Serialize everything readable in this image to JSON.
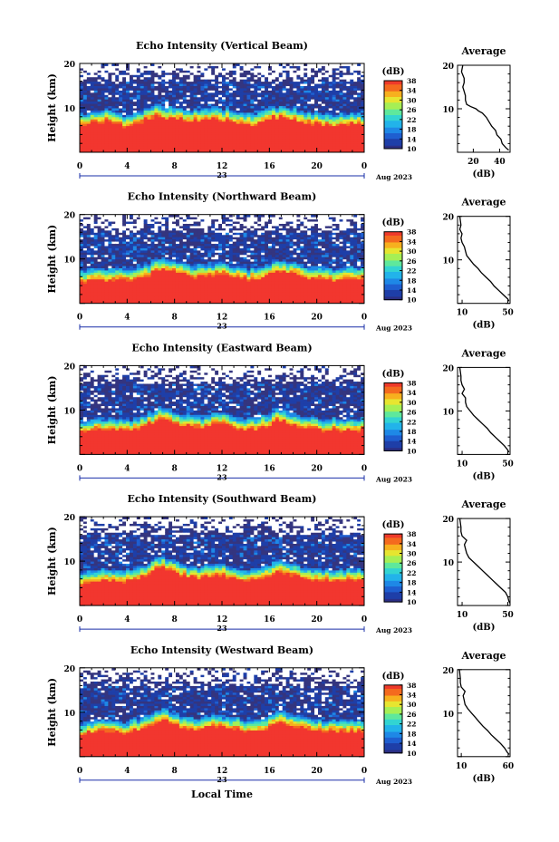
{
  "figure": {
    "xlabel": "Local Time"
  },
  "colors": {
    "colorscale": [
      "#2b2f85",
      "#1e3fa8",
      "#1f5fd0",
      "#1e88e6",
      "#22b3ea",
      "#33d4d2",
      "#5fe89c",
      "#a6ef55",
      "#e7e530",
      "#f7b01e",
      "#f46a1f",
      "#ee3a2a"
    ],
    "background_echo": "#34357f",
    "strong_echo": "#f2362f"
  },
  "chart_data": [
    {
      "type": "heatmap",
      "title": "Echo Intensity (Vertical Beam)",
      "ylabel": "Height (km)",
      "xlim": [
        0,
        24
      ],
      "ylim": [
        0,
        20
      ],
      "xticks": [
        "0",
        "4",
        "8",
        "12",
        "16",
        "20",
        "0"
      ],
      "yticks": [
        "20",
        "10"
      ],
      "date_label": "23",
      "date_side_label": "Aug 2023",
      "colorbar": {
        "unit": "(dB)",
        "range": [
          10,
          38
        ],
        "ticks": [
          "38",
          "34",
          "30",
          "26",
          "22",
          "18",
          "14",
          "10"
        ]
      },
      "boundary_km": [
        6.9,
        7.6,
        8.3,
        7.4,
        7.0,
        7.8,
        8.6,
        9.0,
        8.5,
        8.0,
        8.4,
        8.9,
        8.6,
        7.9,
        7.3,
        7.6,
        8.1,
        8.8,
        8.4,
        7.8,
        7.4,
        7.1,
        7.2,
        7.5,
        7.4
      ],
      "hot_spots": [
        {
          "x": 6.6,
          "h": 9.5
        },
        {
          "x": 16.3,
          "h": 9.4
        }
      ],
      "profile": {
        "title": "Average",
        "xlabel": "(dB)",
        "xticks": [
          "20",
          "40"
        ],
        "xlim": [
          8,
          48
        ],
        "h": [
          20,
          18.5,
          17,
          16,
          15,
          14,
          13,
          12,
          11,
          10.5,
          10,
          9.5,
          9,
          8,
          7,
          6,
          5,
          4,
          3,
          2,
          1,
          0.5
        ],
        "db": [
          12,
          11,
          13,
          13,
          12,
          13,
          14,
          14,
          15,
          18,
          22,
          24,
          27,
          30,
          32,
          34,
          37,
          38,
          41,
          42,
          45,
          47
        ]
      }
    },
    {
      "type": "heatmap",
      "title": "Echo Intensity (Northward Beam)",
      "ylabel": "Height (km)",
      "xlim": [
        0,
        24
      ],
      "ylim": [
        0,
        20
      ],
      "xticks": [
        "0",
        "4",
        "8",
        "12",
        "16",
        "20",
        "0"
      ],
      "yticks": [
        "20",
        "10"
      ],
      "date_label": "23",
      "date_side_label": "Aug 2023",
      "colorbar": {
        "unit": "(dB)",
        "range": [
          10,
          38
        ],
        "ticks": [
          "38",
          "34",
          "30",
          "26",
          "22",
          "18",
          "14",
          "10"
        ]
      },
      "boundary_km": [
        5.5,
        6.2,
        6.6,
        6.4,
        6.2,
        6.8,
        7.7,
        8.5,
        8.0,
        7.2,
        7.0,
        7.4,
        7.8,
        7.1,
        6.4,
        6.6,
        7.2,
        8.3,
        7.7,
        7.0,
        6.6,
        6.3,
        6.5,
        6.6,
        6.4
      ],
      "hot_spots": [
        {
          "x": 6.8,
          "h": 9.2
        },
        {
          "x": 16.5,
          "h": 8.8
        }
      ],
      "profile": {
        "title": "Average",
        "xlabel": "(dB)",
        "xticks": [
          "10",
          "50"
        ],
        "xlim": [
          6,
          52
        ],
        "h": [
          20,
          18,
          17,
          16,
          15,
          14,
          13,
          12,
          11,
          10,
          9,
          8,
          7,
          6,
          5,
          4,
          3,
          2,
          1,
          0.5
        ],
        "db": [
          8,
          9,
          8,
          10,
          9,
          10,
          12,
          13,
          14,
          17,
          20,
          24,
          27,
          31,
          35,
          38,
          42,
          46,
          50,
          51
        ]
      }
    },
    {
      "type": "heatmap",
      "title": "Echo Intensity (Eastward Beam)",
      "ylabel": "Height (km)",
      "xlim": [
        0,
        24
      ],
      "ylim": [
        0,
        20
      ],
      "xticks": [
        "0",
        "4",
        "8",
        "12",
        "16",
        "20",
        "0"
      ],
      "yticks": [
        "20",
        "10"
      ],
      "date_label": "23",
      "date_side_label": "Aug 2023",
      "colorbar": {
        "unit": "(dB)",
        "range": [
          10,
          38
        ],
        "ticks": [
          "38",
          "34",
          "30",
          "26",
          "22",
          "18",
          "14",
          "10"
        ]
      },
      "boundary_km": [
        6.0,
        6.5,
        6.8,
        6.6,
        6.3,
        6.9,
        7.9,
        8.8,
        8.2,
        7.4,
        7.1,
        7.6,
        8.0,
        7.3,
        6.6,
        6.8,
        7.5,
        8.5,
        7.9,
        7.1,
        6.8,
        6.5,
        6.7,
        6.8,
        6.6
      ],
      "hot_spots": [
        {
          "x": 7.0,
          "h": 9.6
        },
        {
          "x": 16.6,
          "h": 9.1
        }
      ],
      "profile": {
        "title": "Average",
        "xlabel": "(dB)",
        "xticks": [
          "10",
          "50"
        ],
        "xlim": [
          6,
          52
        ],
        "h": [
          20,
          18,
          17,
          16,
          15,
          14,
          13,
          12,
          11,
          10,
          9,
          8,
          7,
          6,
          5,
          4,
          3,
          2,
          1,
          0.5
        ],
        "db": [
          8,
          9,
          9,
          10,
          12,
          10,
          13,
          13,
          14,
          17,
          20,
          24,
          28,
          32,
          35,
          39,
          43,
          47,
          50,
          51
        ]
      }
    },
    {
      "type": "heatmap",
      "title": "Echo Intensity (Southward Beam)",
      "ylabel": "Height (km)",
      "xlim": [
        0,
        24
      ],
      "ylim": [
        0,
        20
      ],
      "xticks": [
        "0",
        "4",
        "8",
        "12",
        "16",
        "20",
        "0"
      ],
      "yticks": [
        "20",
        "10"
      ],
      "date_label": "23",
      "date_side_label": "Aug 2023",
      "colorbar": {
        "unit": "(dB)",
        "range": [
          10,
          38
        ],
        "ticks": [
          "38",
          "34",
          "30",
          "26",
          "22",
          "18",
          "14",
          "10"
        ]
      },
      "boundary_km": [
        5.9,
        6.4,
        6.7,
        6.5,
        6.4,
        7.0,
        8.2,
        9.3,
        8.4,
        7.5,
        7.2,
        7.6,
        7.9,
        7.2,
        6.6,
        6.9,
        7.5,
        8.6,
        8.0,
        7.2,
        6.9,
        6.6,
        6.8,
        6.9,
        6.7
      ],
      "hot_spots": [
        {
          "x": 6.8,
          "h": 10.0
        },
        {
          "x": 16.6,
          "h": 9.2
        }
      ],
      "profile": {
        "title": "Average",
        "xlabel": "(dB)",
        "xticks": [
          "10",
          "50"
        ],
        "xlim": [
          6,
          52
        ],
        "h": [
          20,
          18,
          17,
          16,
          15,
          14.5,
          14,
          13,
          12,
          11,
          10,
          9,
          8,
          7,
          6,
          5,
          4,
          3,
          2,
          1,
          0.5
        ],
        "db": [
          8,
          9,
          9,
          10,
          14,
          13,
          12,
          13,
          14,
          16,
          20,
          24,
          28,
          32,
          36,
          40,
          44,
          48,
          50,
          51,
          52
        ]
      }
    },
    {
      "type": "heatmap",
      "title": "Echo Intensity (Westward Beam)",
      "ylabel": "Height (km)",
      "xlim": [
        0,
        24
      ],
      "ylim": [
        0,
        20
      ],
      "xticks": [
        "0",
        "4",
        "8",
        "12",
        "16",
        "20",
        "0"
      ],
      "yticks": [
        "20",
        "10"
      ],
      "date_label": "23",
      "date_side_label": "Aug 2023",
      "colorbar": {
        "unit": "(dB)",
        "range": [
          10,
          38
        ],
        "ticks": [
          "38",
          "34",
          "30",
          "26",
          "22",
          "18",
          "14",
          "10"
        ]
      },
      "boundary_km": [
        6.0,
        6.6,
        6.9,
        6.7,
        6.4,
        7.1,
        8.3,
        9.2,
        8.4,
        7.5,
        7.3,
        7.8,
        8.0,
        7.4,
        6.7,
        7.0,
        7.6,
        8.6,
        8.0,
        7.3,
        6.9,
        6.6,
        6.8,
        6.9,
        6.7
      ],
      "hot_spots": [
        {
          "x": 6.9,
          "h": 9.8
        },
        {
          "x": 16.7,
          "h": 9.3
        }
      ],
      "profile": {
        "title": "Average",
        "xlabel": "(dB)",
        "xticks": [
          "10",
          "60"
        ],
        "xlim": [
          6,
          62
        ],
        "h": [
          20,
          18,
          17,
          16,
          15,
          14.5,
          14,
          13,
          12,
          11,
          10,
          9,
          8,
          7,
          6,
          5,
          4,
          3,
          2,
          1,
          0.5
        ],
        "db": [
          8,
          9,
          9,
          10,
          14,
          13,
          12,
          13,
          14,
          17,
          21,
          25,
          29,
          33,
          38,
          42,
          47,
          52,
          56,
          59,
          61
        ]
      }
    }
  ]
}
